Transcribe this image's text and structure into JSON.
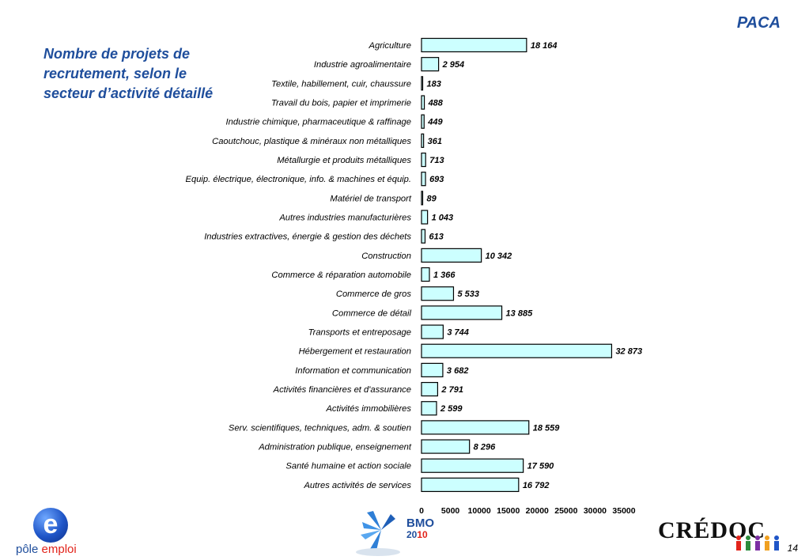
{
  "header": {
    "region": "PACA",
    "title": "Nombre de projets de recrutement, selon le secteur d’activité détaillé"
  },
  "logos": {
    "pole_emploi_letter": "e",
    "pole_emploi_word_1": "pôle",
    "pole_emploi_word_2": "emploi",
    "bmo_name": "BMO",
    "bmo_year_1": "20",
    "bmo_year_2": "10",
    "credoc": "CRÉDOC"
  },
  "footer": {
    "page_number": "14"
  },
  "colors": {
    "bar_fill": "#ccffff",
    "bar_stroke": "#000000",
    "title": "#1f4e9c"
  },
  "chart_data": {
    "type": "bar",
    "orientation": "horizontal",
    "title": "",
    "xlabel": "",
    "ylabel": "",
    "xlim": [
      0,
      35000
    ],
    "xticks": [
      0,
      5000,
      10000,
      15000,
      20000,
      25000,
      30000,
      35000
    ],
    "grid": false,
    "legend": "none",
    "categories": [
      "Agriculture",
      "Industrie agroalimentaire",
      "Textile, habillement, cuir, chaussure",
      "Travail du bois, papier et imprimerie",
      "Industrie chimique, pharmaceutique & raffinage",
      "Caoutchouc, plastique & minéraux non métalliques",
      "Métallurgie et produits métalliques",
      "Equip. électrique, électronique, info. & machines et équip.",
      "Matériel de transport",
      "Autres industries manufacturières",
      "Industries extractives, énergie & gestion des déchets",
      "Construction",
      "Commerce & réparation automobile",
      "Commerce de gros",
      "Commerce de détail",
      "Transports et entreposage",
      "Hébergement et restauration",
      "Information et communication",
      "Activités financières et d'assurance",
      "Activités immobilières",
      "Serv. scientifiques, techniques, adm. & soutien",
      "Administration publique, enseignement",
      "Santé humaine et action sociale",
      "Autres activités de services"
    ],
    "values": [
      18164,
      2954,
      183,
      488,
      449,
      361,
      713,
      693,
      89,
      1043,
      613,
      10342,
      1366,
      5533,
      13885,
      3744,
      32873,
      3682,
      2791,
      2599,
      18559,
      8296,
      17590,
      16792
    ],
    "value_labels": [
      "18 164",
      "2 954",
      "183",
      "488",
      "449",
      "361",
      "713",
      "693",
      "89",
      "1 043",
      "613",
      "10 342",
      "1 366",
      "5 533",
      "13 885",
      "3 744",
      "32 873",
      "3 682",
      "2 791",
      "2 599",
      "18 559",
      "8 296",
      "17 590",
      "16 792"
    ]
  }
}
